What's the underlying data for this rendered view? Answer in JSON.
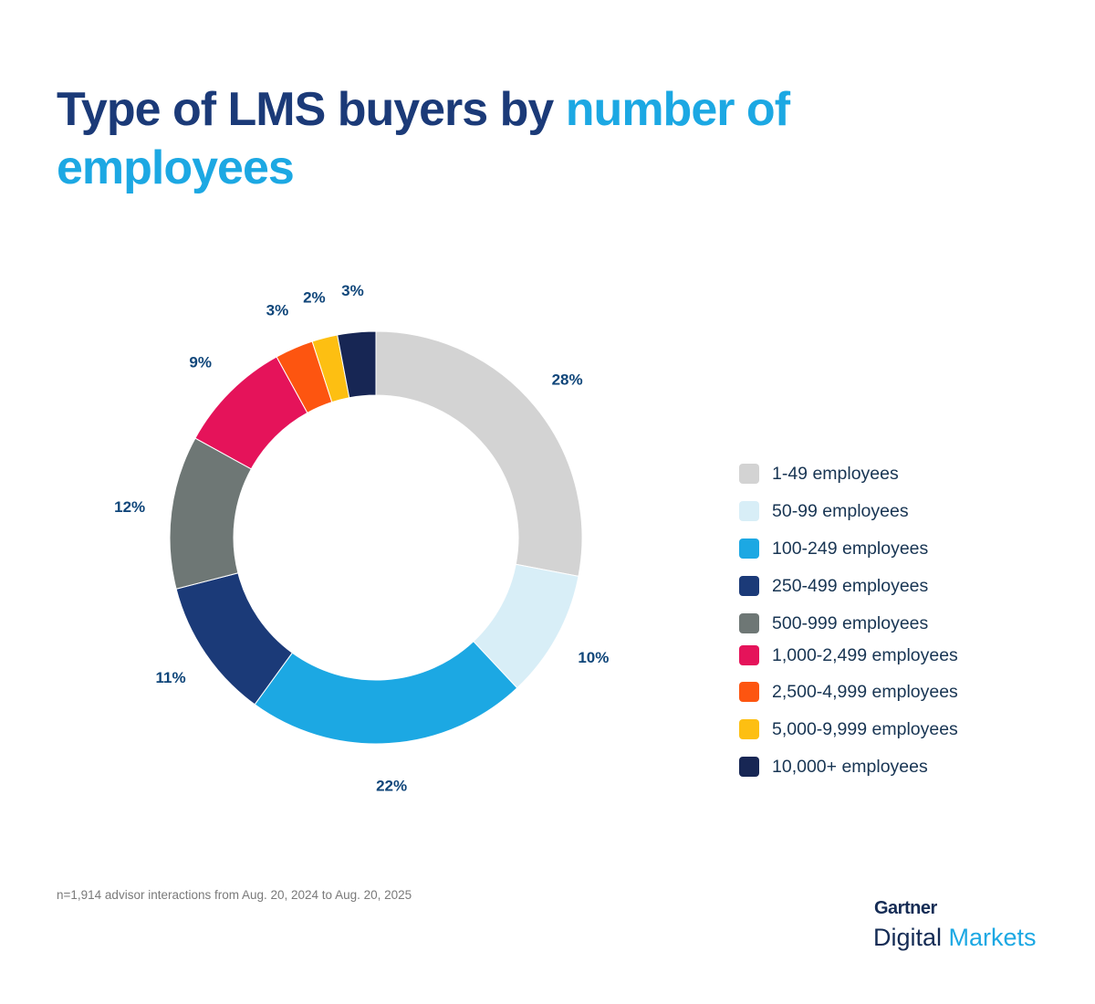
{
  "title": {
    "part1": "Type of LMS buyers by ",
    "part2": "number of employees"
  },
  "chart_data": {
    "type": "pie",
    "donut": true,
    "categories": [
      "1-49 employees",
      "50-99 employees",
      "100-249 employees",
      "250-499 employees",
      "500-999 employees",
      "1,000-2,499 employees",
      "2,500-4,999 employees",
      "5,000-9,999 employees",
      "10,000+ employees"
    ],
    "values": [
      28,
      10,
      22,
      11,
      12,
      9,
      3,
      2,
      3
    ],
    "data_labels": [
      "28%",
      "10%",
      "22%",
      "11%",
      "12%",
      "9%",
      "3%",
      "2%",
      "3%"
    ],
    "colors": [
      "#d3d3d3",
      "#d8eef7",
      "#1ca8e3",
      "#1b3a78",
      "#6e7775",
      "#e5135a",
      "#fd5510",
      "#fdbf12",
      "#172654"
    ],
    "legend_position": "right"
  },
  "footnote": "n=1,914 advisor interactions from Aug. 20, 2024 to Aug. 20, 2025",
  "logo": {
    "line1": "Gartner",
    "line2a": "Digital ",
    "line2b": "Markets"
  }
}
